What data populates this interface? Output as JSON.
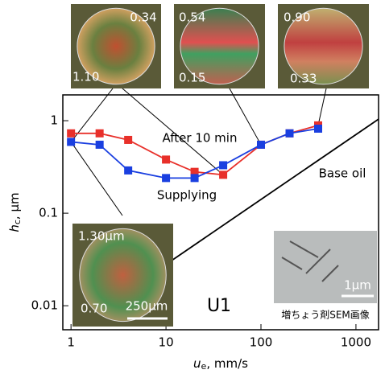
{
  "chart_data": {
    "type": "line",
    "x_label": {
      "main": "u",
      "sub": "e",
      "rest": ", mm/s"
    },
    "y_label": {
      "main": "h",
      "sub": "c",
      "rest": ", μm"
    },
    "log_x": true,
    "log_y": true,
    "xlim": [
      0.82,
      1730
    ],
    "ylim": [
      0.0055,
      1.9
    ],
    "xticks": [
      1,
      10,
      100,
      1000
    ],
    "yticks": [
      0.01,
      0.1,
      1
    ],
    "series": [
      {
        "name": "After 10 min",
        "color": "#e8302a",
        "marker": "square",
        "x": [
          1,
          2,
          4,
          10,
          20,
          40,
          100,
          200,
          400
        ],
        "values": [
          0.73,
          0.73,
          0.62,
          0.38,
          0.28,
          0.26,
          0.55,
          0.73,
          0.89
        ]
      },
      {
        "name": "Supplying",
        "color": "#1a3fe0",
        "marker": "square",
        "x": [
          1,
          2,
          4,
          10,
          20,
          40,
          100,
          200,
          400
        ],
        "values": [
          0.59,
          0.55,
          0.29,
          0.24,
          0.24,
          0.33,
          0.55,
          0.73,
          0.82
        ]
      },
      {
        "name": "Base oil",
        "color": "#000000",
        "marker": "none",
        "x": [
          10,
          1730
        ],
        "values": [
          0.028,
          1.04
        ]
      }
    ],
    "annotation": "U1"
  },
  "insets": [
    {
      "labels": [
        "0.34",
        "1.10"
      ]
    },
    {
      "labels": [
        "0.54",
        "0.15"
      ]
    },
    {
      "labels": [
        "0.90",
        "0.33"
      ]
    },
    {
      "labels": [
        "1.30μm",
        "0.70",
        "250μm"
      ]
    },
    {
      "labels": [
        "1μm",
        "増ちょう剤SEM画像"
      ]
    }
  ]
}
